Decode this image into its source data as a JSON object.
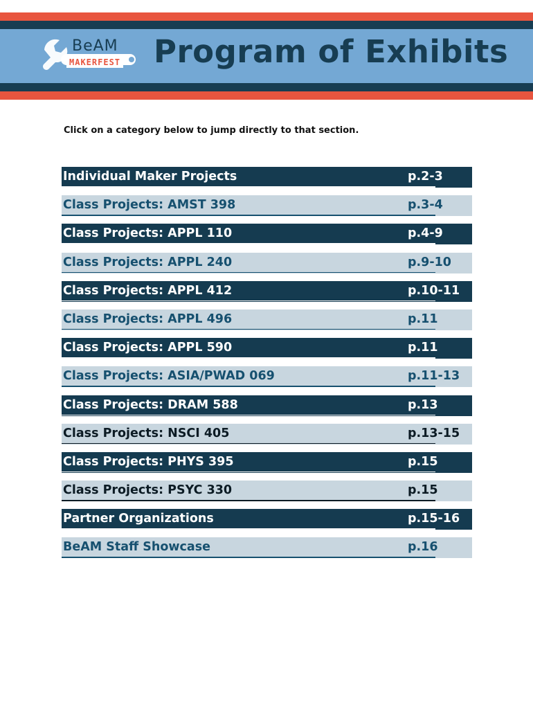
{
  "banner": {
    "logo_top": "BeAM",
    "logo_bottom": "MAKERFEST",
    "title": "Program of Exhibits"
  },
  "instruction": "Click on a category below to jump directly to that section.",
  "toc": [
    {
      "label": "Individual Maker Projects",
      "page": "p.2-3",
      "style": "dark"
    },
    {
      "label": "Class Projects: AMST 398",
      "page": "p.3-4",
      "style": "light"
    },
    {
      "label": "Class Projects: APPL 110",
      "page": "p.4-9",
      "style": "dark"
    },
    {
      "label": "Class Projects: APPL 240",
      "page": "p.9-10",
      "style": "light"
    },
    {
      "label": "Class Projects: APPL 412",
      "page": "p.10-11",
      "style": "dark"
    },
    {
      "label": "Class Projects: APPL 496",
      "page": "p.11",
      "style": "light"
    },
    {
      "label": "Class Projects: APPL 590",
      "page": "p.11",
      "style": "dark"
    },
    {
      "label": "Class Projects: ASIA/PWAD 069",
      "page": "p.11-13",
      "style": "light"
    },
    {
      "label": "Class Projects: DRAM 588",
      "page": "p.13",
      "style": "dark"
    },
    {
      "label": "Class Projects: NSCI 405",
      "page": "p.13-15",
      "style": "light-black"
    },
    {
      "label": "Class Projects: PHYS 395",
      "page": "p.15",
      "style": "dark"
    },
    {
      "label": "Class Projects: PSYC 330",
      "page": "p.15",
      "style": "light-black"
    },
    {
      "label": "Partner Organizations",
      "page": "p.15-16",
      "style": "dark"
    },
    {
      "label": "BeAM Staff Showcase",
      "page": "p.16",
      "style": "light"
    }
  ],
  "colors": {
    "navy": "#173d52",
    "red": "#e8553f",
    "banner_blue": "#74a8d4",
    "row_light": "#c8d6df"
  }
}
